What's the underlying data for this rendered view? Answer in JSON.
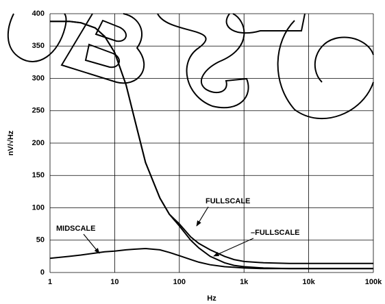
{
  "chart_data": {
    "type": "line",
    "x_label": "Hz",
    "y_label": "nV/√Hz",
    "x": [
      1,
      2,
      3,
      5,
      7,
      10,
      15,
      20,
      30,
      50,
      70,
      100,
      150,
      200,
      300,
      500,
      700,
      1000,
      2000,
      5000,
      10000,
      100000
    ],
    "series": [
      {
        "name": "FULLSCALE",
        "color": "#000000",
        "values": [
          388,
          388,
          386,
          378,
          365,
          340,
          290,
          240,
          170,
          115,
          90,
          75,
          55,
          45,
          35,
          25,
          20,
          17,
          15,
          14,
          14,
          14
        ]
      },
      {
        "name": "–FULLSCALE",
        "color": "#000000",
        "values": [
          388,
          388,
          386,
          378,
          365,
          340,
          290,
          240,
          170,
          115,
          90,
          72,
          50,
          38,
          25,
          15,
          11,
          9,
          7,
          6,
          6,
          6
        ]
      },
      {
        "name": "MIDSCALE",
        "color": "#000000",
        "values": [
          22,
          25,
          27,
          30,
          32,
          33,
          35,
          36,
          37,
          35,
          31,
          26,
          20,
          16,
          12,
          9,
          8,
          7,
          6,
          6,
          6,
          6
        ]
      }
    ],
    "xscale": "log",
    "xlim": [
      1,
      100000
    ],
    "xticks": [
      1,
      10,
      100,
      {
        "value": 1000,
        "label": "1k"
      },
      {
        "value": 10000,
        "label": "10k"
      },
      {
        "value": 100000,
        "label": "100k"
      }
    ],
    "ylim": [
      0,
      400
    ],
    "yticks": [
      0,
      50,
      100,
      150,
      200,
      250,
      300,
      350,
      400
    ],
    "grid": true
  }
}
